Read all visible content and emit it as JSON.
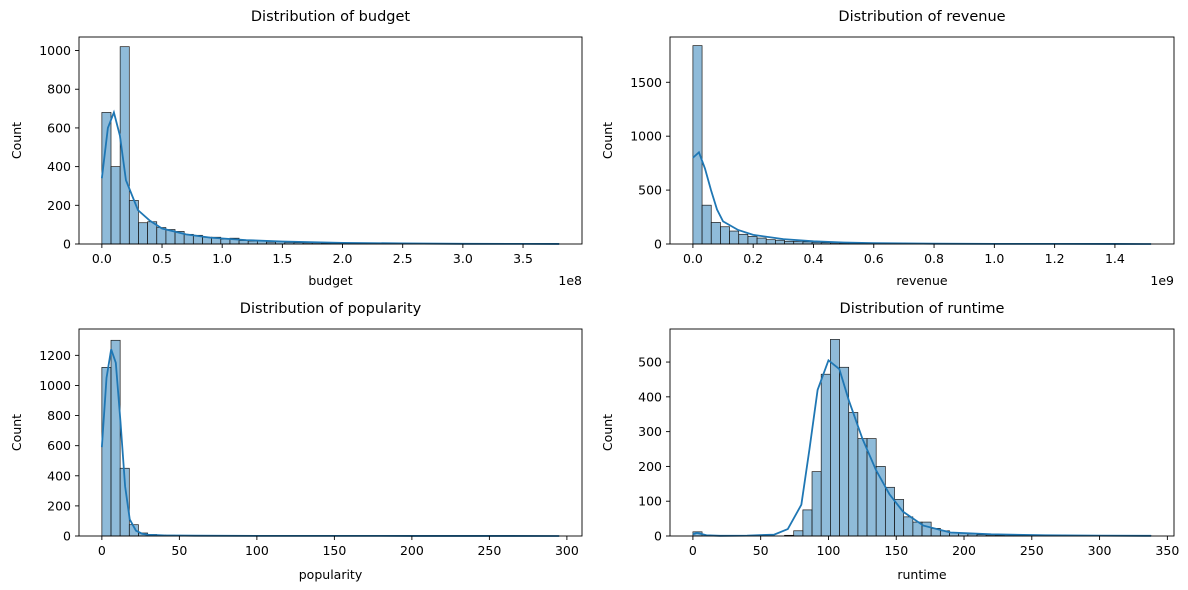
{
  "chart_data": [
    {
      "type": "histogram",
      "title": "Distribution of budget",
      "xlabel": "budget",
      "ylabel": "Count",
      "x_offset_label": "1e8",
      "xlim": [
        -0.19,
        3.99
      ],
      "ylim": [
        0,
        1070
      ],
      "xticks": [
        0.0,
        0.5,
        1.0,
        1.5,
        2.0,
        2.5,
        3.0,
        3.5
      ],
      "xtick_labels": [
        "0.0",
        "0.5",
        "1.0",
        "1.5",
        "2.0",
        "2.5",
        "3.0",
        "3.5"
      ],
      "yticks": [
        0,
        200,
        400,
        600,
        800,
        1000
      ],
      "ytick_labels": [
        "0",
        "200",
        "400",
        "600",
        "800",
        "1000"
      ],
      "bin_start": 0.0,
      "bin_width": 0.076,
      "counts": [
        680,
        400,
        1020,
        225,
        110,
        115,
        85,
        75,
        65,
        50,
        45,
        35,
        35,
        25,
        30,
        18,
        15,
        15,
        10,
        12,
        8,
        7,
        6,
        6,
        4,
        3,
        3,
        2,
        2,
        2,
        1,
        1,
        1,
        1,
        0,
        1,
        0,
        0,
        0,
        0,
        0,
        0,
        0,
        0,
        0,
        0,
        0,
        0,
        0,
        1
      ],
      "kde": {
        "x": [
          0.0,
          0.05,
          0.1,
          0.15,
          0.2,
          0.3,
          0.4,
          0.5,
          0.7,
          0.9,
          1.2,
          1.5,
          2.0,
          2.5,
          3.0,
          3.5,
          3.8
        ],
        "y": [
          340,
          600,
          680,
          560,
          330,
          175,
          120,
          80,
          50,
          33,
          20,
          13,
          6,
          3,
          1,
          0.5,
          0.2
        ]
      }
    },
    {
      "type": "histogram",
      "title": "Distribution of revenue",
      "xlabel": "revenue",
      "ylabel": "Count",
      "x_offset_label": "1e9",
      "xlim": [
        -0.076,
        1.596
      ],
      "ylim": [
        0,
        1920
      ],
      "xticks": [
        0.0,
        0.2,
        0.4,
        0.6,
        0.8,
        1.0,
        1.2,
        1.4
      ],
      "xtick_labels": [
        "0.0",
        "0.2",
        "0.4",
        "0.6",
        "0.8",
        "1.0",
        "1.2",
        "1.4"
      ],
      "yticks": [
        0,
        500,
        1000,
        1500
      ],
      "ytick_labels": [
        "0",
        "500",
        "1000",
        "1500"
      ],
      "bin_start": 0.0,
      "bin_width": 0.0304,
      "counts": [
        1840,
        360,
        200,
        160,
        120,
        90,
        70,
        55,
        40,
        35,
        25,
        25,
        20,
        15,
        12,
        10,
        8,
        7,
        6,
        5,
        4,
        3,
        3,
        2,
        2,
        1,
        1,
        1,
        1,
        1,
        0,
        0,
        0,
        0,
        0,
        0,
        0,
        0,
        0,
        0,
        0,
        0,
        0,
        0,
        0,
        0,
        0,
        0,
        0,
        1
      ],
      "kde": {
        "x": [
          0.0,
          0.02,
          0.04,
          0.06,
          0.08,
          0.1,
          0.15,
          0.2,
          0.3,
          0.4,
          0.5,
          0.6,
          0.8,
          1.0,
          1.2,
          1.4,
          1.52
        ],
        "y": [
          800,
          850,
          700,
          500,
          320,
          210,
          130,
          85,
          45,
          25,
          14,
          8,
          3,
          1.5,
          0.8,
          0.4,
          0.2
        ]
      }
    },
    {
      "type": "histogram",
      "title": "Distribution of popularity",
      "xlabel": "popularity",
      "ylabel": "Count",
      "x_offset_label": "",
      "xlim": [
        -14.75,
        309.75
      ],
      "ylim": [
        0,
        1375
      ],
      "xticks": [
        0,
        50,
        100,
        150,
        200,
        250,
        300
      ],
      "xtick_labels": [
        "0",
        "50",
        "100",
        "150",
        "200",
        "250",
        "300"
      ],
      "yticks": [
        0,
        200,
        400,
        600,
        800,
        1000,
        1200
      ],
      "ytick_labels": [
        "0",
        "200",
        "400",
        "600",
        "800",
        "1000",
        "1200"
      ],
      "bin_start": 0.0,
      "bin_width": 5.9,
      "counts": [
        1120,
        1300,
        450,
        75,
        20,
        10,
        6,
        5,
        4,
        3,
        3,
        2,
        2,
        2,
        1,
        1,
        1,
        1,
        1,
        1,
        1,
        1,
        1,
        1,
        1,
        1,
        1,
        1,
        1,
        1,
        1,
        1,
        1,
        1,
        1,
        0,
        0,
        0,
        0,
        0,
        0,
        0,
        0,
        0,
        0,
        0,
        0,
        0,
        0,
        1
      ],
      "kde": {
        "x": [
          0,
          3,
          6,
          9,
          12,
          15,
          18,
          22,
          26,
          30,
          40,
          60,
          100,
          200,
          295
        ],
        "y": [
          590,
          1050,
          1240,
          1150,
          760,
          330,
          110,
          35,
          15,
          8,
          4,
          2,
          1,
          0.5,
          0.2
        ]
      }
    },
    {
      "type": "histogram",
      "title": "Distribution of runtime",
      "xlabel": "runtime",
      "ylabel": "Count",
      "x_offset_label": "",
      "xlim": [
        -16.9,
        354.9
      ],
      "ylim": [
        0,
        595
      ],
      "xticks": [
        0,
        50,
        100,
        150,
        200,
        250,
        300,
        350
      ],
      "xtick_labels": [
        "0",
        "50",
        "100",
        "150",
        "200",
        "250",
        "300",
        "350"
      ],
      "yticks": [
        0,
        100,
        200,
        300,
        400,
        500
      ],
      "ytick_labels": [
        "0",
        "100",
        "200",
        "300",
        "400",
        "500"
      ],
      "bin_start": 0.0,
      "bin_width": 6.76,
      "counts": [
        12,
        0,
        0,
        0,
        0,
        0,
        0,
        0,
        0,
        0,
        2,
        15,
        75,
        185,
        465,
        565,
        485,
        355,
        280,
        280,
        200,
        140,
        105,
        55,
        40,
        40,
        22,
        15,
        10,
        8,
        6,
        4,
        3,
        2,
        1,
        1,
        1,
        0,
        0,
        0,
        0,
        0,
        0,
        0,
        0,
        0,
        0,
        0,
        0,
        1
      ],
      "kde": {
        "x": [
          0,
          3,
          6,
          10,
          20,
          40,
          60,
          70,
          80,
          86,
          92,
          100,
          108,
          115,
          125,
          135,
          145,
          155,
          170,
          190,
          220,
          260,
          300,
          338
        ],
        "y": [
          5,
          9,
          6,
          2,
          0.5,
          1,
          4,
          20,
          90,
          250,
          420,
          505,
          480,
          390,
          280,
          190,
          120,
          70,
          30,
          10,
          5,
          2,
          1,
          0.5
        ]
      }
    }
  ]
}
